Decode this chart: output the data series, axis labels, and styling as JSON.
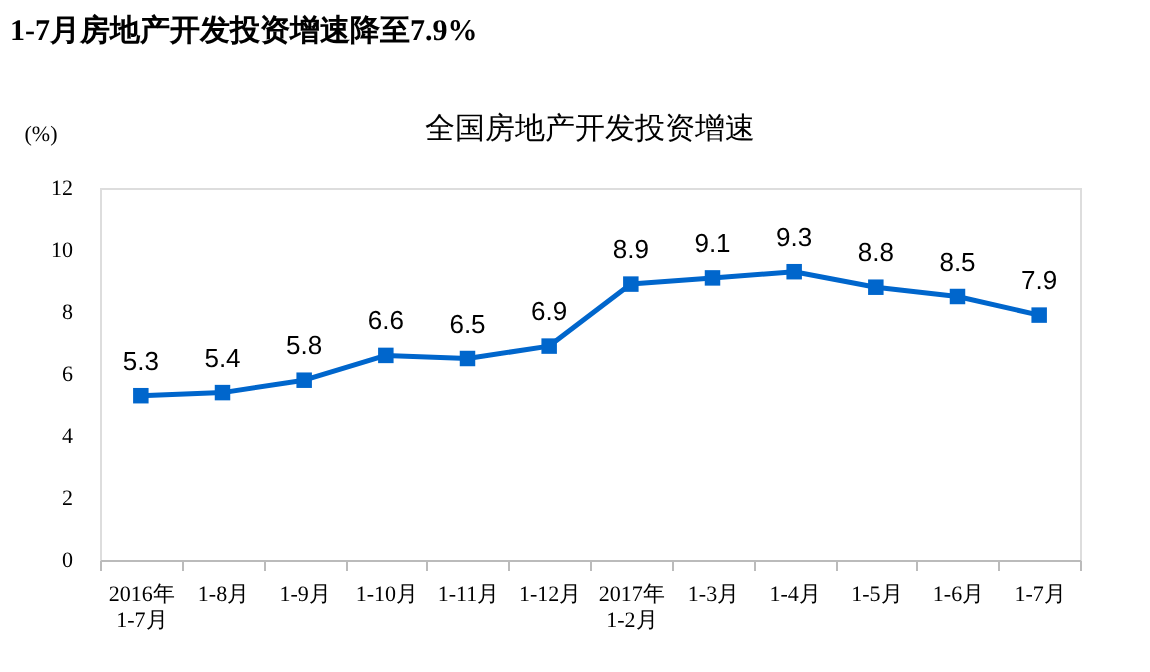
{
  "chart_data": {
    "type": "line",
    "title": "1-7月房地产开发投资增速降至7.9%",
    "subtitle": "全国房地产开发投资增速",
    "ylabel": "(%)",
    "categories": [
      "2016年\n1-7月",
      "1-8月",
      "1-9月",
      "1-10月",
      "1-11月",
      "1-12月",
      "2017年\n1-2月",
      "1-3月",
      "1-4月",
      "1-5月",
      "1-6月",
      "1-7月"
    ],
    "series": [
      {
        "color": "#0066cc",
        "values": [
          5.3,
          5.4,
          5.8,
          6.6,
          6.5,
          6.9,
          8.9,
          9.1,
          9.3,
          8.8,
          8.5,
          7.9
        ]
      }
    ],
    "ylim": [
      0,
      12
    ],
    "yticks": [
      0,
      2,
      4,
      6,
      8,
      10,
      12
    ],
    "grid": false,
    "marker": "square",
    "line_style": "solid",
    "data_labels": true
  }
}
